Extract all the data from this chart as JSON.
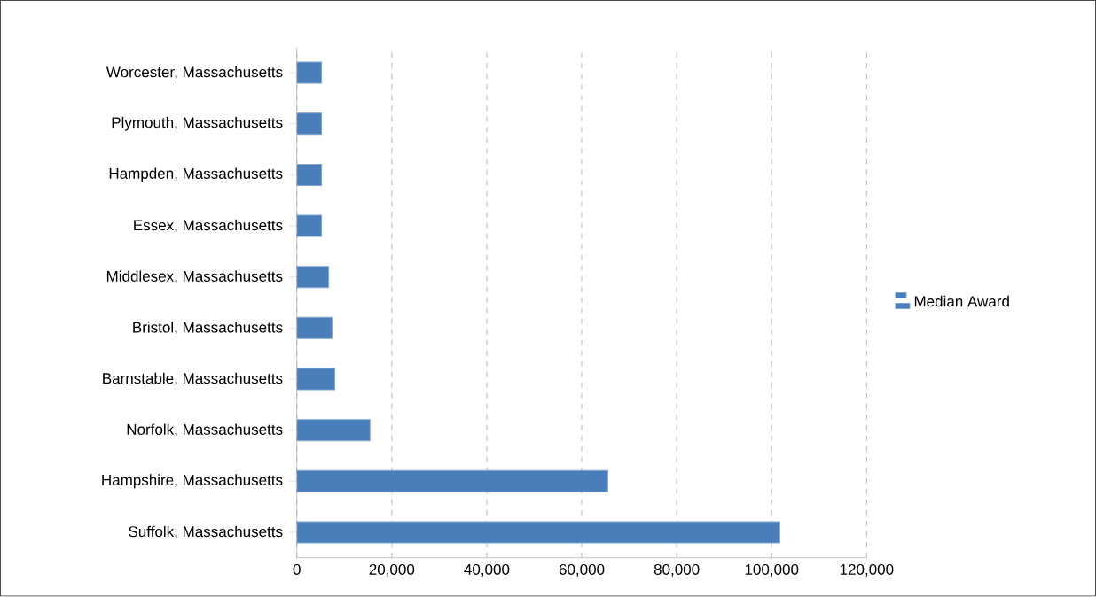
{
  "chart_data": {
    "type": "bar",
    "orientation": "horizontal",
    "categories": [
      "Worcester, Massachusetts",
      "Plymouth, Massachusetts",
      "Hampden, Massachusetts",
      "Essex, Massachusetts",
      "Middlesex, Massachusetts",
      "Bristol, Massachusetts",
      "Barnstable, Massachusetts",
      "Norfolk, Massachusetts",
      "Hampshire, Massachusetts",
      "Suffolk, Massachusetts"
    ],
    "series": [
      {
        "name": "Median Award",
        "color": "#4a7ebb",
        "values": [
          5200,
          5200,
          5200,
          5200,
          6700,
          7400,
          8000,
          15400,
          65500,
          101700
        ]
      }
    ],
    "xlim": [
      0,
      120000
    ],
    "xticks": [
      {
        "value": 0,
        "label": "0"
      },
      {
        "value": 20000,
        "label": "20,000"
      },
      {
        "value": 40000,
        "label": "40,000"
      },
      {
        "value": 60000,
        "label": "60,000"
      },
      {
        "value": 80000,
        "label": "80,000"
      },
      {
        "value": 100000,
        "label": "100,000"
      },
      {
        "value": 120000,
        "label": "120,000"
      }
    ],
    "grid": "x",
    "legend": "right"
  }
}
